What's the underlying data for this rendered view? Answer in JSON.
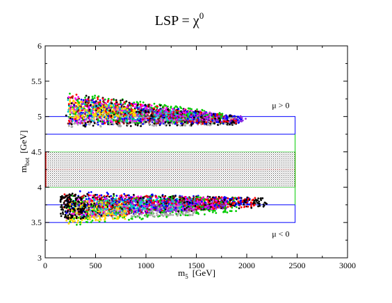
{
  "chart_data": {
    "type": "scatter",
    "title": "LSP = χ",
    "title_superscript": "0",
    "xlabel_base": "m",
    "xlabel_sub": "5",
    "xlabel_unit": "[GeV]",
    "ylabel_base": "m",
    "ylabel_sub": "bot",
    "ylabel_unit": "[GeV]",
    "xlim": [
      0,
      3000
    ],
    "ylim": [
      3,
      6
    ],
    "xticks": [
      0,
      500,
      1000,
      1500,
      2000,
      2500,
      3000
    ],
    "yticks": [
      3,
      3.5,
      4,
      4.5,
      5,
      5.5,
      6
    ],
    "grid": false,
    "annotations": [
      {
        "text": "μ > 0",
        "x": 2250,
        "y": 5.12
      },
      {
        "text": "μ < 0",
        "x": 2250,
        "y": 3.3
      }
    ],
    "bands": [
      {
        "name": "mu-positive-band",
        "x": [
          0,
          2480
        ],
        "y": [
          4.75,
          5.0
        ],
        "stroke": "#0000ff"
      },
      {
        "name": "mu-negative-band",
        "x": [
          0,
          2480
        ],
        "y": [
          3.5,
          3.75
        ],
        "stroke": "#0000ff"
      },
      {
        "name": "central-band",
        "x": [
          0,
          2480
        ],
        "y": [
          4.0,
          4.5
        ],
        "stroke": "#00cc00"
      },
      {
        "name": "hatched-band",
        "x": [
          0,
          2480
        ],
        "y": [
          4.0,
          4.5
        ],
        "pattern": "dotted-grid"
      }
    ],
    "series": [
      {
        "color": "#000000",
        "clusters": [
          {
            "x": [
              200,
              1900
            ],
            "y_upper": [
              5.35,
              5.0
            ],
            "y_lower": [
              4.85,
              4.88
            ]
          },
          {
            "x": [
              150,
              2200
            ],
            "y_upper": [
              3.92,
              3.85
            ],
            "y_lower": [
              3.55,
              3.72
            ]
          }
        ]
      },
      {
        "color": "#ff0000",
        "clusters": [
          {
            "x": [
              220,
              1900
            ],
            "y_upper": [
              5.33,
              5.0
            ],
            "y_lower": [
              4.88,
              4.9
            ]
          },
          {
            "x": [
              180,
              2100
            ],
            "y_upper": [
              3.9,
              3.85
            ],
            "y_lower": [
              3.55,
              3.72
            ]
          }
        ]
      },
      {
        "color": "#00cc00",
        "clusters": [
          {
            "x": [
              220,
              1800
            ],
            "y_upper": [
              5.35,
              5.05
            ],
            "y_lower": [
              4.9,
              4.9
            ]
          },
          {
            "x": [
              200,
              1900
            ],
            "y_upper": [
              3.9,
              3.85
            ],
            "y_lower": [
              3.45,
              3.65
            ]
          }
        ]
      },
      {
        "color": "#0000ff",
        "clusters": [
          {
            "x": [
              220,
              1950
            ],
            "y_upper": [
              5.3,
              5.0
            ],
            "y_lower": [
              4.88,
              4.9
            ]
          },
          {
            "x": [
              200,
              2050
            ],
            "y_upper": [
              3.95,
              3.85
            ],
            "y_lower": [
              3.55,
              3.75
            ]
          }
        ]
      },
      {
        "color": "#ff00ff",
        "clusters": [
          {
            "x": [
              220,
              1700
            ],
            "y_upper": [
              5.3,
              5.05
            ],
            "y_lower": [
              4.9,
              4.95
            ]
          },
          {
            "x": [
              200,
              1800
            ],
            "y_upper": [
              3.9,
              3.85
            ],
            "y_lower": [
              3.55,
              3.7
            ]
          }
        ]
      },
      {
        "color": "#00cccc",
        "clusters": [
          {
            "x": [
              220,
              1500
            ],
            "y_upper": [
              5.25,
              5.05
            ],
            "y_lower": [
              4.9,
              4.95
            ]
          },
          {
            "x": [
              200,
              1500
            ],
            "y_upper": [
              3.85,
              3.85
            ],
            "y_lower": [
              3.55,
              3.7
            ]
          }
        ]
      },
      {
        "color": "#ffd700",
        "clusters": [
          {
            "x": [
              220,
              900
            ],
            "y_upper": [
              5.25,
              5.1
            ],
            "y_lower": [
              4.95,
              5.0
            ]
          },
          {
            "x": [
              200,
              800
            ],
            "y_upper": [
              3.8,
              3.8
            ],
            "y_lower": [
              3.48,
              3.55
            ]
          }
        ]
      },
      {
        "color": "#aaaaaa",
        "clusters": [
          {
            "x": [
              220,
              1900
            ],
            "y_upper": [
              5.1,
              5.0
            ],
            "y_lower": [
              4.85,
              4.88
            ]
          },
          {
            "x": [
              200,
              1500
            ],
            "y_upper": [
              3.75,
              3.75
            ],
            "y_lower": [
              3.55,
              3.6
            ]
          }
        ]
      },
      {
        "color": "#8b1a1a",
        "clusters": [
          {
            "x": [
              220,
              1600
            ],
            "y_upper": [
              5.3,
              5.0
            ],
            "y_lower": [
              4.9,
              4.9
            ]
          },
          {
            "x": [
              160,
              1800
            ],
            "y_upper": [
              3.9,
              3.85
            ],
            "y_lower": [
              3.55,
              3.7
            ]
          }
        ]
      },
      {
        "color": "#8a2be2",
        "clusters": [
          {
            "x": [
              220,
              2000
            ],
            "y_upper": [
              5.2,
              5.0
            ],
            "y_lower": [
              4.9,
              4.92
            ]
          },
          {
            "x": [
              200,
              1800
            ],
            "y_upper": [
              3.85,
              3.8
            ],
            "y_lower": [
              3.55,
              3.7
            ]
          }
        ]
      }
    ]
  }
}
